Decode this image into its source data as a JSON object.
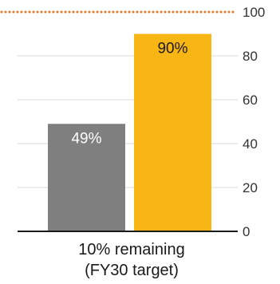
{
  "chart_data": {
    "type": "bar",
    "categories": [
      "10% remaining\n(FY30 target)"
    ],
    "series": [
      {
        "values": [
          49
        ],
        "color": "#7f7f7f"
      },
      {
        "values": [
          90
        ],
        "color": "#f8b614"
      }
    ],
    "data_labels": [
      "49%",
      "90%"
    ],
    "ylim": [
      0,
      100
    ],
    "yticks": [
      "0",
      "20",
      "40",
      "60",
      "80",
      "100"
    ],
    "grid": true,
    "target_line": {
      "value": 100,
      "color": "#e0782a",
      "style": "dotted"
    }
  },
  "category_label_lines": [
    "10% remaining",
    "(FY30 target)"
  ]
}
